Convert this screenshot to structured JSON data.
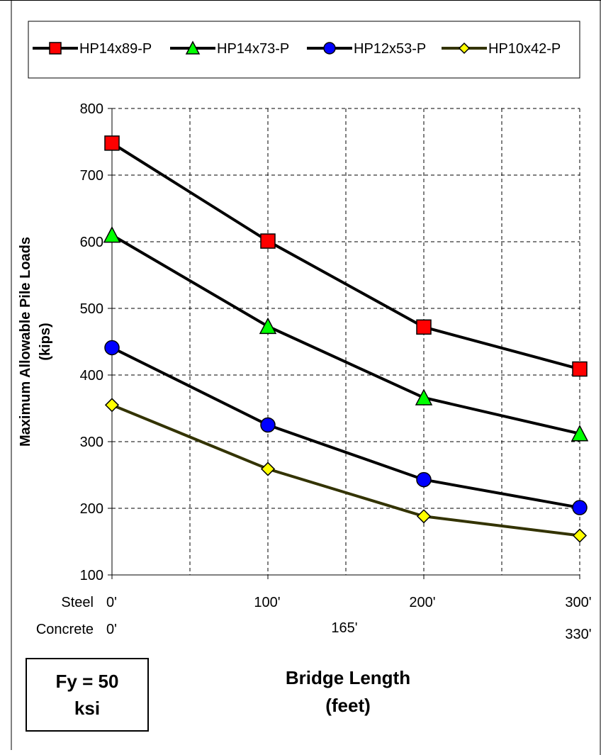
{
  "chart_data": {
    "type": "line",
    "title": "",
    "ylabel_lines": [
      "Maximum Allowable Pile Loads",
      "(kips)"
    ],
    "xlabel_lines": [
      "Bridge Length",
      "(feet)"
    ],
    "ylim": [
      100,
      800
    ],
    "yticks": [
      100,
      200,
      300,
      400,
      500,
      600,
      700,
      800
    ],
    "xlim": [
      0,
      300
    ],
    "x": [
      0,
      100,
      200,
      300
    ],
    "grid": true,
    "legend_position": "top",
    "x_tick_rows": [
      {
        "label": "Steel",
        "ticks": [
          "0'",
          "100'",
          "200'",
          "300'"
        ]
      },
      {
        "label": "Concrete",
        "ticks": [
          "0'",
          "165'",
          "330'"
        ]
      }
    ],
    "series": [
      {
        "name": "HP14x89-P",
        "marker": "square",
        "color": "#ff0000",
        "line_color": "#000000",
        "values": [
          748,
          601,
          472,
          409
        ]
      },
      {
        "name": "HP14x73-P",
        "marker": "triangle",
        "color": "#00ff00",
        "line_color": "#000000",
        "values": [
          610,
          473,
          366,
          312
        ]
      },
      {
        "name": "HP12x53-P",
        "marker": "circle",
        "color": "#0000ff",
        "line_color": "#000000",
        "values": [
          441,
          325,
          243,
          201
        ]
      },
      {
        "name": "HP10x42-P",
        "marker": "diamond",
        "color": "#ffff00",
        "line_color": "#333300",
        "values": [
          355,
          259,
          188,
          159
        ]
      }
    ]
  },
  "annotation": {
    "line1": "Fy = 50",
    "line2": "ksi"
  }
}
